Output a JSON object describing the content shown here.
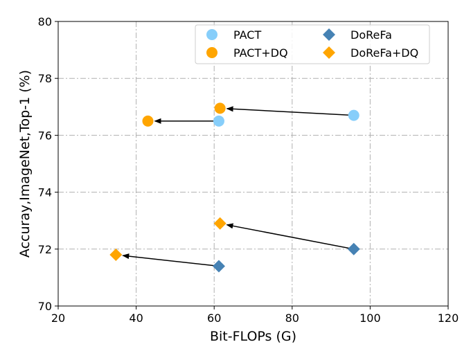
{
  "chart_data": {
    "type": "scatter",
    "title": "",
    "xlabel": "Bit-FLOPs (G)",
    "ylabel": "Accuray,ImageNet,Top-1 (%)",
    "xlim": [
      20,
      120
    ],
    "ylim": [
      70,
      80
    ],
    "xticks": [
      "20",
      "40",
      "60",
      "80",
      "100",
      "120"
    ],
    "yticks": [
      "70",
      "72",
      "74",
      "76",
      "78",
      "80"
    ],
    "grid": true,
    "legend_position": "top-right",
    "series": [
      {
        "name": "PACT",
        "marker": "circle",
        "color": "#87cefa",
        "points": [
          {
            "x": 95.8,
            "y": 76.7
          },
          {
            "x": 61.2,
            "y": 76.5
          }
        ]
      },
      {
        "name": "PACT+DQ",
        "marker": "circle",
        "color": "#ffa500",
        "points": [
          {
            "x": 61.5,
            "y": 76.95
          },
          {
            "x": 43.0,
            "y": 76.5
          }
        ]
      },
      {
        "name": "DoReFa",
        "marker": "diamond",
        "color": "#4682b4",
        "points": [
          {
            "x": 95.8,
            "y": 72.0
          },
          {
            "x": 61.2,
            "y": 71.4
          }
        ]
      },
      {
        "name": "DoReFa+DQ",
        "marker": "diamond",
        "color": "#ffa500",
        "points": [
          {
            "x": 61.5,
            "y": 72.9
          },
          {
            "x": 34.8,
            "y": 71.8
          }
        ]
      }
    ],
    "arrows": [
      {
        "from": {
          "x": 95.8,
          "y": 76.7
        },
        "to": {
          "x": 61.5,
          "y": 76.95
        }
      },
      {
        "from": {
          "x": 61.2,
          "y": 76.5
        },
        "to": {
          "x": 43.0,
          "y": 76.5
        }
      },
      {
        "from": {
          "x": 95.8,
          "y": 72.0
        },
        "to": {
          "x": 61.5,
          "y": 72.9
        }
      },
      {
        "from": {
          "x": 61.2,
          "y": 71.4
        },
        "to": {
          "x": 34.8,
          "y": 71.8
        }
      }
    ]
  }
}
